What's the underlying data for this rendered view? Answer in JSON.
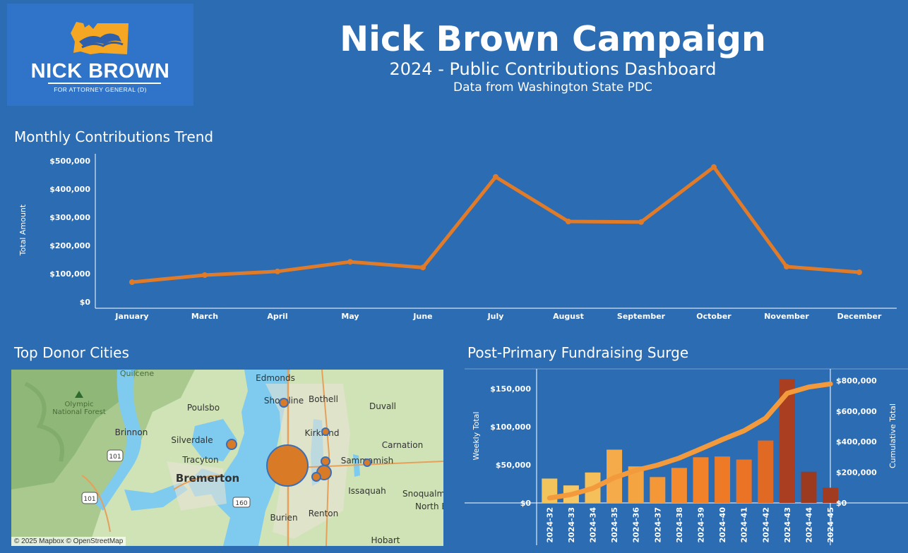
{
  "header": {
    "logo": {
      "name": "NICK BROWN",
      "sub": "FOR ATTORNEY GENERAL (D)"
    },
    "title": "Nick Brown Campaign",
    "subtitle": "2024 - Public Contributions Dashboard",
    "source": "Data from Washington State PDC"
  },
  "colors": {
    "background": "#2b6cb3",
    "line": "#e07b2a",
    "logo_state": "#f5a623"
  },
  "sections": {
    "trend_title": "Monthly Contributions Trend",
    "cities_title": "Top Donor Cities",
    "surge_title": "Post-Primary Fundraising Surge"
  },
  "map": {
    "attribution": "© 2025 Mapbox © OpenStreetMap",
    "labels": [
      {
        "text": "Quilcene"
      },
      {
        "text": "Olympic"
      },
      {
        "text": "National Forest"
      },
      {
        "text": "Poulsbo"
      },
      {
        "text": "Brinnon"
      },
      {
        "text": "Silverdale"
      },
      {
        "text": "Tracyton"
      },
      {
        "text": "Bremerton"
      },
      {
        "text": "Edmonds"
      },
      {
        "text": "Shoreline"
      },
      {
        "text": "Bothell"
      },
      {
        "text": "Duvall"
      },
      {
        "text": "Kirkland"
      },
      {
        "text": "Carnation"
      },
      {
        "text": "Sammamish"
      },
      {
        "text": "Issaquah"
      },
      {
        "text": "Snoqualm"
      },
      {
        "text": "North B"
      },
      {
        "text": "Renton"
      },
      {
        "text": "Burien"
      },
      {
        "text": "Hobart"
      },
      {
        "text": "101"
      },
      {
        "text": "101"
      },
      {
        "text": "160"
      }
    ]
  },
  "chart_data": [
    {
      "type": "line",
      "ylabel": "Total Amount",
      "categories": [
        "January",
        "March",
        "April",
        "May",
        "June",
        "July",
        "August",
        "September",
        "October",
        "November",
        "December"
      ],
      "values": [
        70000,
        95000,
        108000,
        142000,
        122000,
        443000,
        285000,
        283000,
        478000,
        125000,
        105000
      ],
      "y_ticks": [
        "$0",
        "$100,000",
        "$200,000",
        "$300,000",
        "$400,000",
        "$500,000"
      ],
      "ylim": [
        0,
        500000
      ],
      "grid": false
    },
    {
      "type": "bar",
      "ylabel": "Weekly Total",
      "ylabel_right": "Cumulative Total",
      "categories": [
        "2024-32",
        "2024-33",
        "2024-34",
        "2024-35",
        "2024-36",
        "2024-37",
        "2024-38",
        "2024-39",
        "2024-40",
        "2024-41",
        "2024-42",
        "2024-43",
        "2024-44",
        "2024-45"
      ],
      "values": [
        32000,
        23000,
        40000,
        70000,
        48000,
        34000,
        46000,
        60000,
        61000,
        57000,
        82000,
        163000,
        41000,
        20000
      ],
      "bar_colors": [
        "#f3c45c",
        "#f6c765",
        "#f5bf5a",
        "#f5ab4a",
        "#f4a542",
        "#f49737",
        "#f38a2d",
        "#f28229",
        "#ee7a26",
        "#ea7326",
        "#e06924",
        "#a93f20",
        "#9c3a20",
        "#a23c20"
      ],
      "cumulative": [
        32000,
        55000,
        95000,
        165000,
        213000,
        247000,
        293000,
        353000,
        414000,
        471000,
        553000,
        716000,
        757000,
        777000
      ],
      "y_ticks": [
        "$0",
        "$50,000",
        "$100,000",
        "$150,000"
      ],
      "ylim": [
        0,
        165000
      ],
      "y2_ticks": [
        "$0",
        "$200,000",
        "$400,000",
        "$600,000",
        "$800,000"
      ],
      "y2lim": [
        0,
        820000
      ]
    }
  ]
}
